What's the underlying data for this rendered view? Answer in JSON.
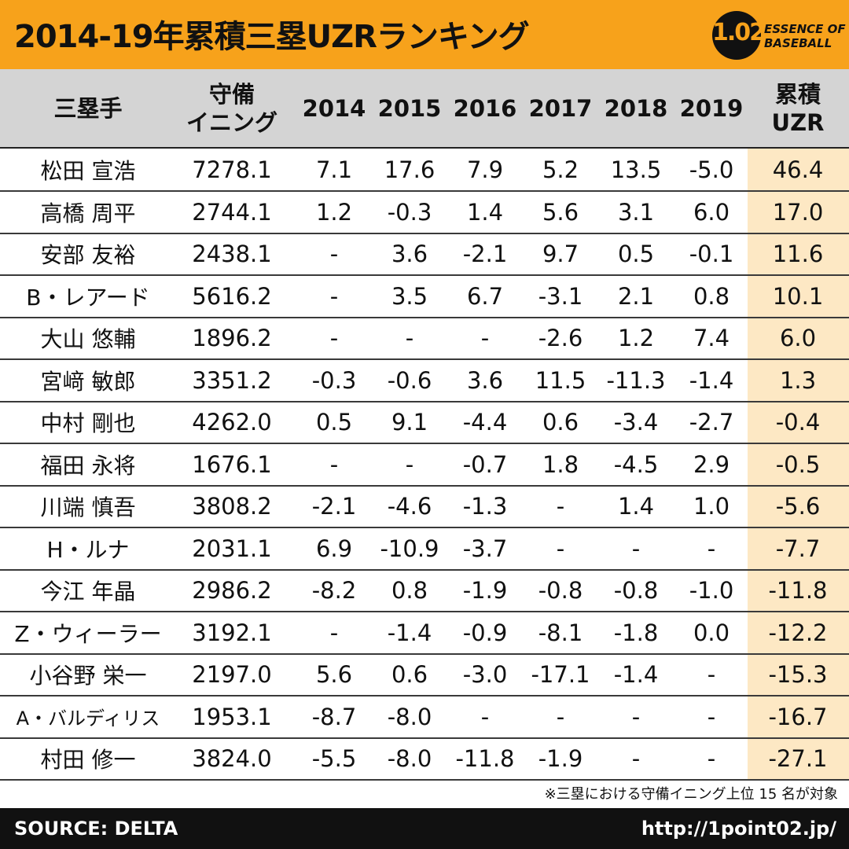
{
  "header": {
    "title": "2014-19年累積三塁UZRランキング",
    "logo_number": "1.02",
    "logo_line1": "ESSENCE OF",
    "logo_line2": "BASEBALL"
  },
  "colors": {
    "header_bg": "#f7a21b",
    "table_head_bg": "#d4d4d4",
    "uzr_col_bg": "#fde8c4",
    "footer_bg": "#111111"
  },
  "chart_data": {
    "type": "table",
    "title": "2014-19年累積三塁UZRランキング",
    "columns": [
      {
        "line1": "三塁手",
        "line2": ""
      },
      {
        "line1": "守備",
        "line2": "イニング"
      },
      {
        "line1": "2014",
        "line2": ""
      },
      {
        "line1": "2015",
        "line2": ""
      },
      {
        "line1": "2016",
        "line2": ""
      },
      {
        "line1": "2017",
        "line2": ""
      },
      {
        "line1": "2018",
        "line2": ""
      },
      {
        "line1": "2019",
        "line2": ""
      },
      {
        "line1": "累積",
        "line2": "UZR"
      }
    ],
    "rows": [
      [
        "松田 宣浩",
        "7278.1",
        "7.1",
        "17.6",
        "7.9",
        "5.2",
        "13.5",
        "-5.0",
        "46.4"
      ],
      [
        "高橋 周平",
        "2744.1",
        "1.2",
        "-0.3",
        "1.4",
        "5.6",
        "3.1",
        "6.0",
        "17.0"
      ],
      [
        "安部 友裕",
        "2438.1",
        "-",
        "3.6",
        "-2.1",
        "9.7",
        "0.5",
        "-0.1",
        "11.6"
      ],
      [
        "B・レアード",
        "5616.2",
        "-",
        "3.5",
        "6.7",
        "-3.1",
        "2.1",
        "0.8",
        "10.1"
      ],
      [
        "大山 悠輔",
        "1896.2",
        "-",
        "-",
        "-",
        "-2.6",
        "1.2",
        "7.4",
        "6.0"
      ],
      [
        "宮﨑 敏郎",
        "3351.2",
        "-0.3",
        "-0.6",
        "3.6",
        "11.5",
        "-11.3",
        "-1.4",
        "1.3"
      ],
      [
        "中村 剛也",
        "4262.0",
        "0.5",
        "9.1",
        "-4.4",
        "0.6",
        "-3.4",
        "-2.7",
        "-0.4"
      ],
      [
        "福田 永将",
        "1676.1",
        "-",
        "-",
        "-0.7",
        "1.8",
        "-4.5",
        "2.9",
        "-0.5"
      ],
      [
        "川端 慎吾",
        "3808.2",
        "-2.1",
        "-4.6",
        "-1.3",
        "-",
        "1.4",
        "1.0",
        "-5.6"
      ],
      [
        "H・ルナ",
        "2031.1",
        "6.9",
        "-10.9",
        "-3.7",
        "-",
        "-",
        "-",
        "-7.7"
      ],
      [
        "今江 年晶",
        "2986.2",
        "-8.2",
        "0.8",
        "-1.9",
        "-0.8",
        "-0.8",
        "-1.0",
        "-11.8"
      ],
      [
        "Z・ウィーラー",
        "3192.1",
        "-",
        "-1.4",
        "-0.9",
        "-8.1",
        "-1.8",
        "0.0",
        "-12.2"
      ],
      [
        "小谷野 栄一",
        "2197.0",
        "5.6",
        "0.6",
        "-3.0",
        "-17.1",
        "-1.4",
        "-",
        "-15.3"
      ],
      [
        "A・バルディリス",
        "1953.1",
        "-8.7",
        "-8.0",
        "-",
        "-",
        "-",
        "-",
        "-16.7"
      ],
      [
        "村田 修一",
        "3824.0",
        "-5.5",
        "-8.0",
        "-11.8",
        "-1.9",
        "-",
        "-",
        "-27.1"
      ]
    ]
  },
  "footnote": "※三塁における守備イニング上位 15 名が対象",
  "footer": {
    "source": "SOURCE: DELTA",
    "url": "http://1point02.jp/"
  }
}
